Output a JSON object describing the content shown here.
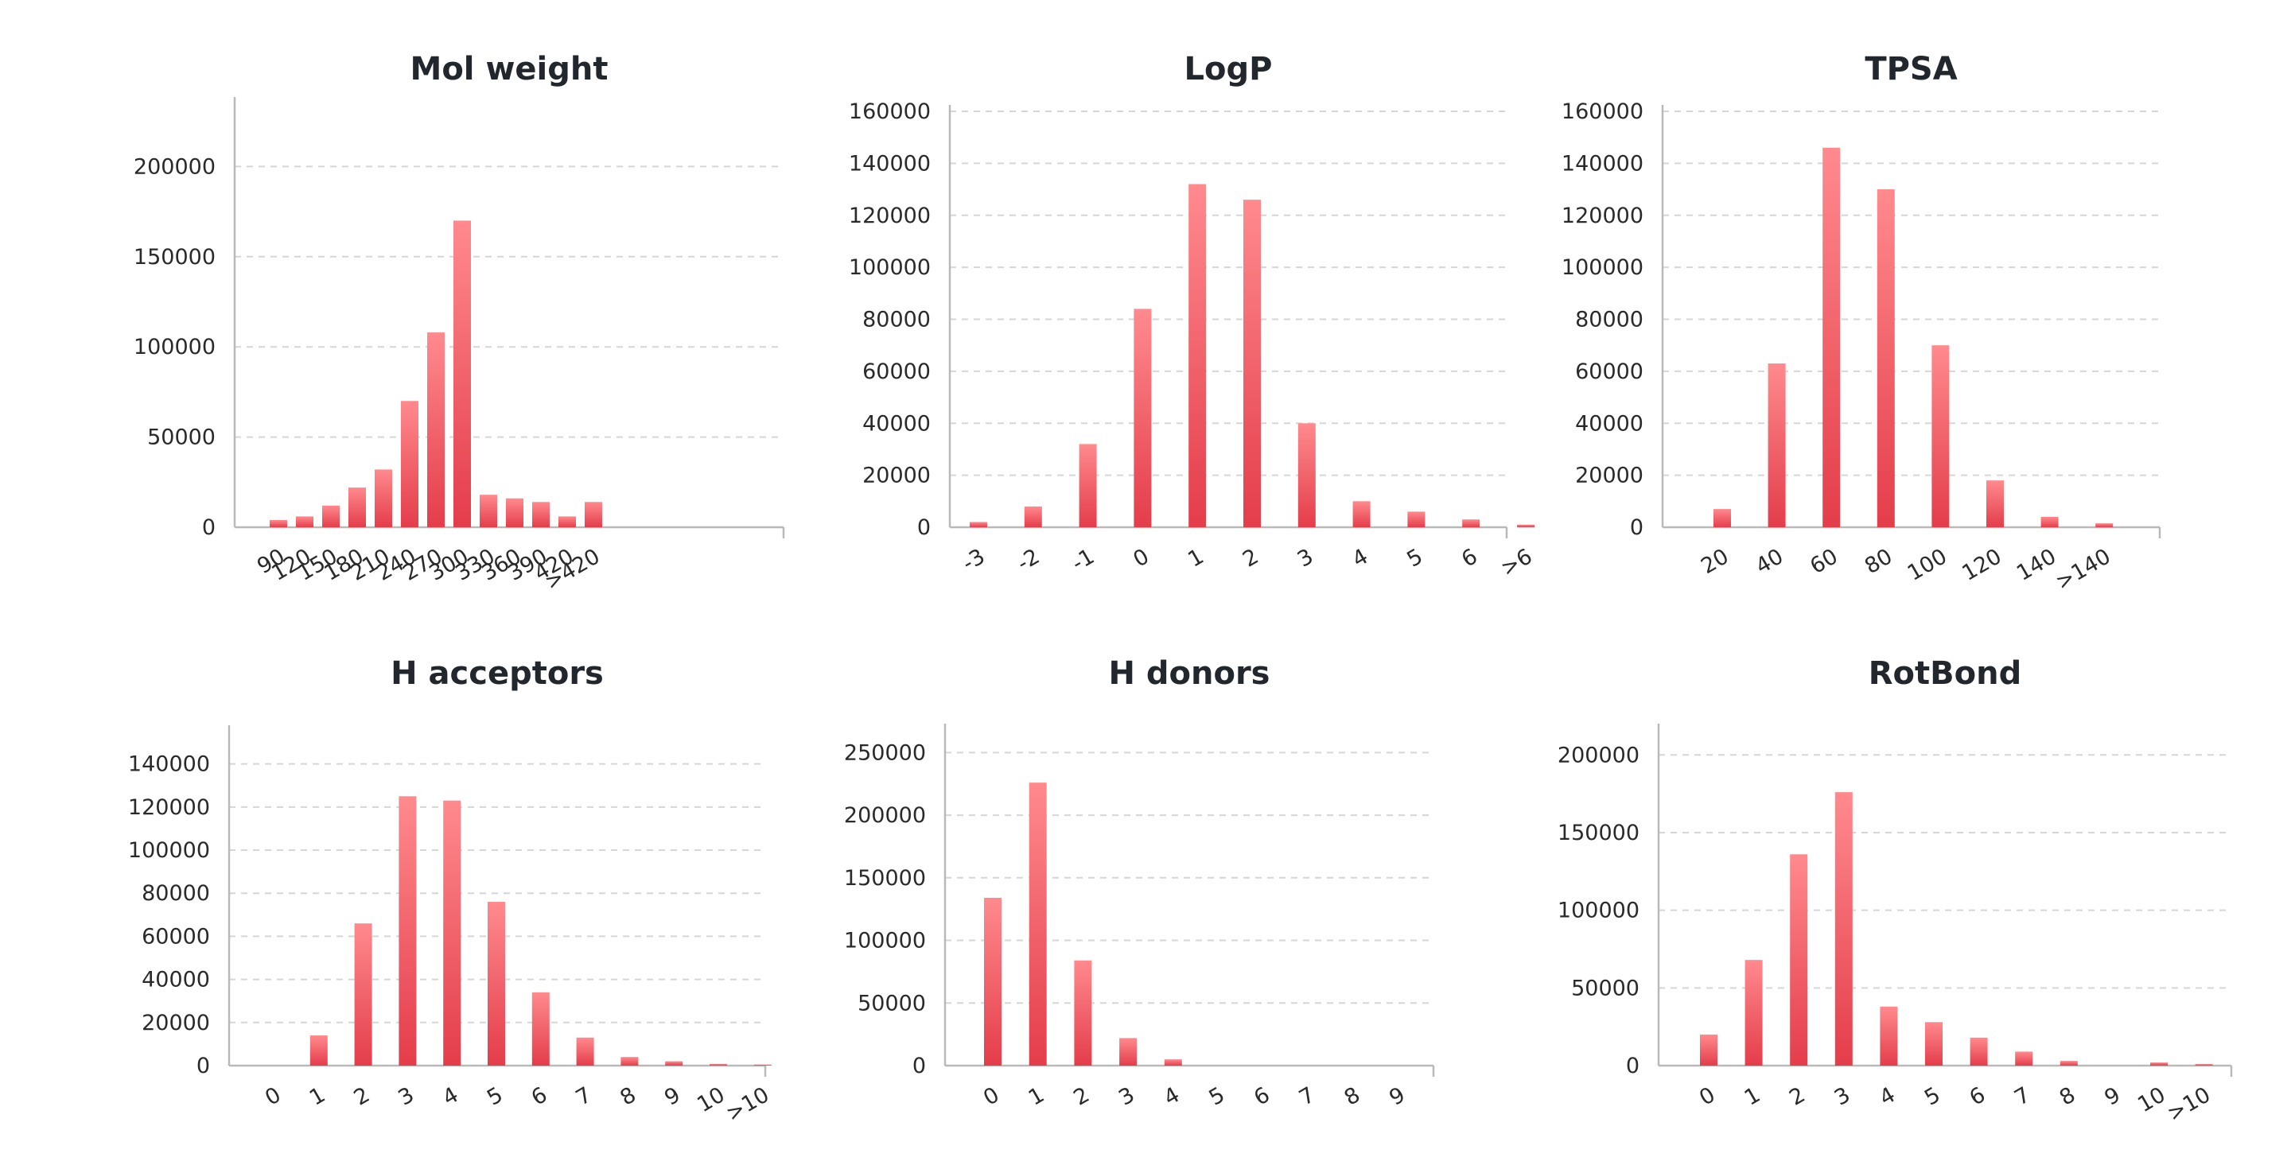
{
  "colors": {
    "bar_top": "#ff8a8e",
    "bar_bottom": "#e43d4a",
    "grid": "#d6d6d6",
    "axis": "#b9b9b9",
    "text": "#22262d"
  },
  "chart_data": [
    {
      "type": "bar",
      "title": "Mol weight",
      "categories": [
        "90",
        "120",
        "150",
        "180",
        "210",
        "240",
        "270",
        "300",
        "330",
        "360",
        "390",
        "420",
        ">420"
      ],
      "values": [
        4000,
        6000,
        12000,
        22000,
        32000,
        70000,
        108000,
        170000,
        18000,
        16000,
        14000,
        6000,
        14000
      ],
      "yticks": [
        0,
        50000,
        100000,
        150000,
        200000
      ],
      "ylim": [
        0,
        235000
      ],
      "grid": true
    },
    {
      "type": "bar",
      "title": "LogP",
      "categories": [
        "-3",
        "-2",
        "-1",
        "0",
        "1",
        "2",
        "3",
        "4",
        "5",
        "6",
        ">6"
      ],
      "values": [
        2000,
        8000,
        32000,
        84000,
        132000,
        126000,
        40000,
        10000,
        6000,
        3000,
        1000
      ],
      "yticks": [
        0,
        20000,
        40000,
        60000,
        80000,
        100000,
        120000,
        140000,
        160000
      ],
      "ylim": [
        0,
        160000
      ],
      "grid": true
    },
    {
      "type": "bar",
      "title": "TPSA",
      "categories": [
        "20",
        "40",
        "60",
        "80",
        "100",
        "120",
        "140",
        ">140"
      ],
      "values": [
        7000,
        63000,
        146000,
        130000,
        70000,
        18000,
        4000,
        1500
      ],
      "yticks": [
        0,
        20000,
        40000,
        60000,
        80000,
        100000,
        120000,
        140000,
        160000
      ],
      "ylim": [
        0,
        160000
      ],
      "grid": true
    },
    {
      "type": "bar",
      "title": "H acceptors",
      "categories": [
        "0",
        "1",
        "2",
        "3",
        "4",
        "5",
        "6",
        "7",
        "8",
        "9",
        "10",
        ">10"
      ],
      "values": [
        0,
        14000,
        66000,
        125000,
        123000,
        76000,
        34000,
        13000,
        4000,
        2000,
        800,
        500
      ],
      "yticks": [
        0,
        20000,
        40000,
        60000,
        80000,
        100000,
        120000,
        140000
      ],
      "ylim": [
        0,
        155000
      ],
      "grid": true
    },
    {
      "type": "bar",
      "title": "H donors",
      "categories": [
        "0",
        "1",
        "2",
        "3",
        "4",
        "5",
        "6",
        "7",
        "8",
        "9"
      ],
      "values": [
        134000,
        226000,
        84000,
        22000,
        5000,
        0,
        0,
        0,
        0,
        0
      ],
      "yticks": [
        0,
        50000,
        100000,
        150000,
        200000,
        250000
      ],
      "ylim": [
        0,
        268000
      ],
      "grid": true
    },
    {
      "type": "bar",
      "title": "RotBond",
      "categories": [
        "0",
        "1",
        "2",
        "3",
        "4",
        "5",
        "6",
        "7",
        "8",
        "9",
        "10",
        ">10"
      ],
      "values": [
        20000,
        68000,
        136000,
        176000,
        38000,
        28000,
        18000,
        9000,
        3000,
        0,
        2000,
        1000
      ],
      "yticks": [
        0,
        50000,
        100000,
        150000,
        200000
      ],
      "ylim": [
        0,
        216000
      ],
      "grid": true
    }
  ]
}
